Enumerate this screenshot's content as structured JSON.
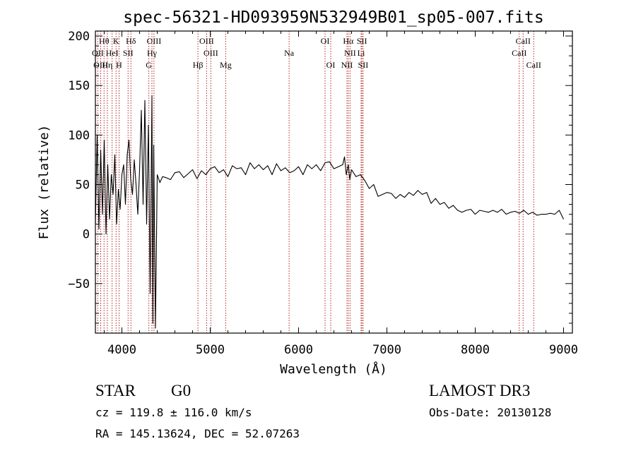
{
  "chart_data": {
    "type": "line",
    "title": "spec-56321-HD093959N532949B01_sp05-007.fits",
    "xlabel": "Wavelength (Å)",
    "ylabel": "Flux (relative)",
    "xlim": [
      3700,
      9100
    ],
    "ylim": [
      -100,
      205
    ],
    "xticks": [
      4000,
      5000,
      6000,
      7000,
      8000,
      9000
    ],
    "xtick_labels": [
      "4000",
      "5000",
      "6000",
      "7000",
      "8000",
      "9000"
    ],
    "yticks": [
      -50,
      0,
      50,
      100,
      150,
      200
    ],
    "ytick_labels": [
      "−50",
      "0",
      "50",
      "100",
      "150",
      "200"
    ],
    "grid": false,
    "series": [
      {
        "name": "flux",
        "x": [
          3700,
          3720,
          3740,
          3760,
          3780,
          3800,
          3820,
          3840,
          3860,
          3880,
          3900,
          3920,
          3940,
          3960,
          3980,
          4000,
          4020,
          4040,
          4060,
          4080,
          4100,
          4120,
          4140,
          4160,
          4180,
          4200,
          4220,
          4240,
          4260,
          4280,
          4300,
          4320,
          4340,
          4350,
          4360,
          4380,
          4400,
          4430,
          4460,
          4500,
          4550,
          4600,
          4650,
          4700,
          4750,
          4800,
          4850,
          4900,
          4950,
          5000,
          5050,
          5100,
          5150,
          5200,
          5250,
          5300,
          5350,
          5400,
          5450,
          5500,
          5550,
          5600,
          5650,
          5700,
          5750,
          5800,
          5850,
          5900,
          5950,
          6000,
          6050,
          6100,
          6150,
          6200,
          6250,
          6300,
          6350,
          6400,
          6450,
          6500,
          6520,
          6540,
          6563,
          6580,
          6600,
          6650,
          6700,
          6750,
          6800,
          6850,
          6900,
          6950,
          7000,
          7050,
          7100,
          7150,
          7200,
          7250,
          7300,
          7350,
          7400,
          7450,
          7500,
          7550,
          7600,
          7650,
          7700,
          7750,
          7800,
          7850,
          7900,
          7950,
          8000,
          8050,
          8100,
          8150,
          8200,
          8250,
          8300,
          8350,
          8400,
          8450,
          8500,
          8550,
          8600,
          8650,
          8700,
          8750,
          8800,
          8850,
          8900,
          8950,
          9000
        ],
        "values": [
          10,
          100,
          5,
          85,
          20,
          95,
          0,
          70,
          15,
          60,
          40,
          80,
          10,
          45,
          25,
          60,
          70,
          30,
          80,
          95,
          55,
          40,
          75,
          50,
          20,
          65,
          125,
          30,
          135,
          10,
          110,
          -60,
          140,
          -90,
          90,
          -95,
          60,
          52,
          58,
          57,
          55,
          62,
          63,
          57,
          61,
          65,
          56,
          64,
          60,
          66,
          68,
          62,
          65,
          58,
          69,
          66,
          67,
          60,
          72,
          66,
          70,
          65,
          69,
          60,
          71,
          64,
          67,
          62,
          64,
          68,
          60,
          70,
          66,
          70,
          64,
          72,
          73,
          66,
          68,
          70,
          78,
          60,
          70,
          55,
          65,
          58,
          60,
          54,
          46,
          50,
          38,
          40,
          42,
          41,
          36,
          40,
          37,
          42,
          39,
          44,
          40,
          42,
          31,
          36,
          30,
          32,
          26,
          29,
          24,
          22,
          24,
          25,
          20,
          24,
          23,
          22,
          24,
          22,
          25,
          20,
          22,
          23,
          21,
          24,
          20,
          22,
          19,
          20,
          20,
          21,
          20,
          24,
          15
        ]
      }
    ],
    "line_markers": [
      {
        "label": "Hθ",
        "x": 3798,
        "row": 1
      },
      {
        "label": "K",
        "x": 3934,
        "row": 1
      },
      {
        "label": "Hδ",
        "x": 4102,
        "row": 1
      },
      {
        "label": "OIII",
        "x": 4363,
        "row": 1
      },
      {
        "label": "OIII",
        "x": 4959,
        "row": 1
      },
      {
        "label": "OI",
        "x": 6300,
        "row": 1
      },
      {
        "label": "Hα",
        "x": 6563,
        "row": 1
      },
      {
        "label": "SII",
        "x": 6717,
        "row": 1
      },
      {
        "label": "CaII",
        "x": 8542,
        "row": 1
      },
      {
        "label": "OII",
        "x": 3727,
        "row": 2
      },
      {
        "label": "HeI",
        "x": 3889,
        "row": 2
      },
      {
        "label": "SII",
        "x": 4070,
        "row": 2
      },
      {
        "label": "Hγ",
        "x": 4340,
        "row": 2
      },
      {
        "label": "OIII",
        "x": 5007,
        "row": 2
      },
      {
        "label": "Na",
        "x": 5893,
        "row": 2
      },
      {
        "label": "NII",
        "x": 6583,
        "row": 2
      },
      {
        "label": "Li",
        "x": 6708,
        "row": 2
      },
      {
        "label": "CaII",
        "x": 8498,
        "row": 2
      },
      {
        "label": "OIII",
        "x": 3760,
        "row": 3
      },
      {
        "label": "Hη",
        "x": 3835,
        "row": 3
      },
      {
        "label": "H",
        "x": 3968,
        "row": 3
      },
      {
        "label": "G",
        "x": 4305,
        "row": 3
      },
      {
        "label": "Hβ",
        "x": 4861,
        "row": 3
      },
      {
        "label": "Mg",
        "x": 5175,
        "row": 3
      },
      {
        "label": "OI",
        "x": 6364,
        "row": 3
      },
      {
        "label": "NII",
        "x": 6548,
        "row": 3
      },
      {
        "label": "SII",
        "x": 6731,
        "row": 3
      },
      {
        "label": "CaII",
        "x": 8662,
        "row": 3
      }
    ]
  },
  "info": {
    "class": "STAR",
    "subclass": "G0",
    "survey": "LAMOST DR3",
    "cz": "cz = 119.8 ± 116.0 km/s",
    "obs_date": "Obs-Date: 20130128",
    "coords": "RA = 145.13624, DEC =  52.07263"
  },
  "colors": {
    "spectrum": "#000000",
    "marker_line": "#b22222",
    "axes": "#000000"
  }
}
